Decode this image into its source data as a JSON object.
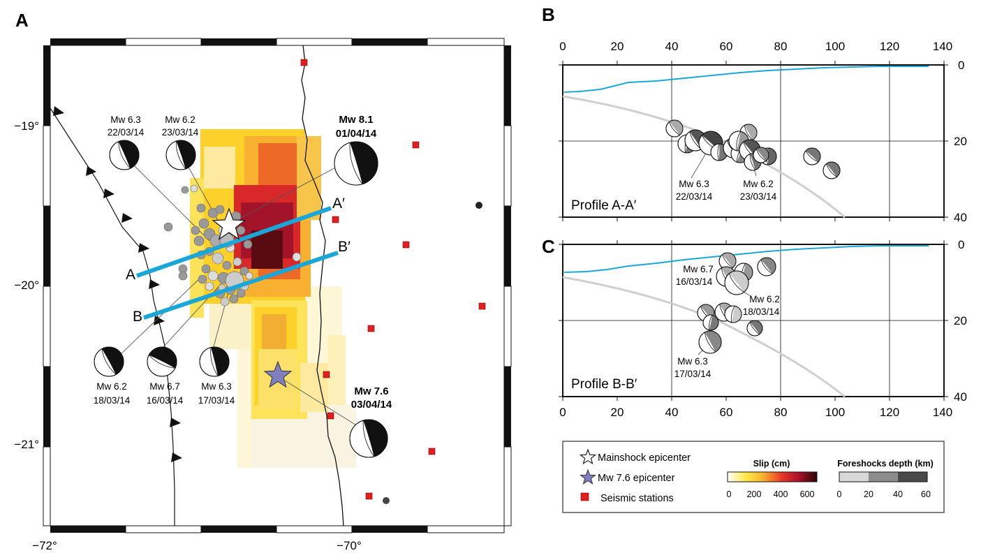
{
  "panels": {
    "a": "A",
    "b": "B",
    "c": "C"
  },
  "map": {
    "lon_ticks": [
      "−72°",
      "−70°"
    ],
    "lat_ticks": [
      "−19°",
      "−20°",
      "−21°"
    ],
    "profile_lines": [
      {
        "start": "A",
        "end": "A′"
      },
      {
        "start": "B",
        "end": "B′"
      }
    ],
    "events": [
      {
        "mag": "Mw 6.3",
        "date": "22/03/14"
      },
      {
        "mag": "Mw 6.2",
        "date": "23/03/14"
      },
      {
        "mag": "Mw 8.1",
        "date": "01/04/14"
      },
      {
        "mag": "Mw 6.2",
        "date": "18/03/14"
      },
      {
        "mag": "Mw 6.7",
        "date": "16/03/14"
      },
      {
        "mag": "Mw 6.3",
        "date": "17/03/14"
      },
      {
        "mag": "Mw 7.6",
        "date": "03/04/14"
      }
    ]
  },
  "profile_b": {
    "label": "Profile A-A′",
    "x_ticks": [
      "0",
      "20",
      "40",
      "60",
      "80",
      "100",
      "120",
      "140"
    ],
    "y_ticks": [
      "0",
      "20",
      "40"
    ],
    "events": [
      {
        "mag": "Mw 6.3",
        "date": "22/03/14"
      },
      {
        "mag": "Mw 6.2",
        "date": "23/03/14"
      }
    ]
  },
  "profile_c": {
    "label": "Profile B-B′",
    "x_ticks": [
      "0",
      "20",
      "40",
      "60",
      "80",
      "100",
      "120",
      "140"
    ],
    "y_ticks": [
      "0",
      "20",
      "40"
    ],
    "events": [
      {
        "mag": "Mw 6.7",
        "date": "16/03/14"
      },
      {
        "mag": "Mw 6.2",
        "date": "18/03/14"
      },
      {
        "mag": "Mw 6.3",
        "date": "17/03/14"
      }
    ]
  },
  "legend": {
    "mainshock": "Mainshock epicenter",
    "mw76": "Mw 7.6 epicenter",
    "stations": "Seismic stations",
    "slip_title": "Slip (cm)",
    "slip_ticks": [
      "0",
      "200",
      "400",
      "600"
    ],
    "depth_title": "Foreshocks depth (km)",
    "depth_ticks": [
      "0",
      "20",
      "40",
      "60"
    ]
  },
  "colors": {
    "trench": "#111111",
    "profile_line": "#1aa7d8",
    "station": "#e02020",
    "mw76_star": "#7f7fbf",
    "slab": "#cfcfcf",
    "topo": "#1aa7d8"
  }
}
